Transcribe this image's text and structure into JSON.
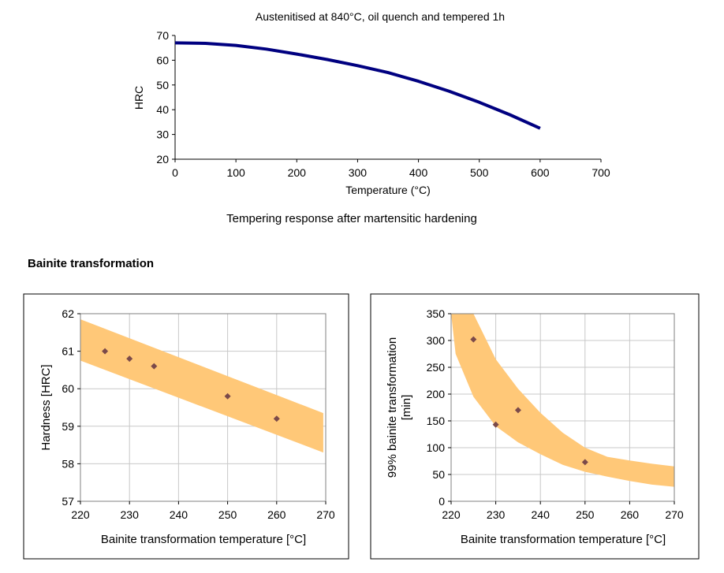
{
  "section_heading": "Bainite transformation",
  "caption_top": "Tempering response after martensitic hardening",
  "chart_data": [
    {
      "type": "line",
      "title": "Austenitised at 840°C, oil quench and tempered 1h",
      "xlabel": "Temperature (°C)",
      "ylabel": "HRC",
      "xlim": [
        0,
        700
      ],
      "ylim": [
        20,
        70
      ],
      "xticks": [
        "0",
        "100",
        "200",
        "300",
        "400",
        "500",
        "600",
        "700"
      ],
      "yticks": [
        "20",
        "30",
        "40",
        "50",
        "60",
        "70"
      ],
      "grid": false,
      "series": [
        {
          "color": "#000080",
          "x": [
            0,
            50,
            100,
            150,
            200,
            250,
            300,
            350,
            400,
            450,
            500,
            550,
            600
          ],
          "y": [
            67,
            66.8,
            66,
            64.5,
            62.5,
            60.3,
            57.8,
            55,
            51.5,
            47.5,
            43,
            38,
            32.5
          ]
        }
      ]
    },
    {
      "type": "scatter",
      "title": "",
      "xlabel": "Bainite transformation temperature [°C]",
      "ylabel": "Hardness [HRC]",
      "xlim": [
        220,
        270
      ],
      "ylim": [
        57,
        62
      ],
      "xticks": [
        "220",
        "230",
        "240",
        "250",
        "260",
        "270"
      ],
      "yticks": [
        "57",
        "58",
        "59",
        "60",
        "61",
        "62"
      ],
      "grid": true,
      "band_color": "#ffc878",
      "band": {
        "x": [
          220,
          269.5
        ],
        "upper": [
          61.85,
          59.35
        ],
        "lower": [
          60.75,
          58.3
        ]
      },
      "series": [
        {
          "color": "#7b4a4a",
          "x": [
            225,
            230,
            235,
            250,
            260
          ],
          "y": [
            61.0,
            60.8,
            60.6,
            59.8,
            59.2
          ]
        }
      ]
    },
    {
      "type": "scatter",
      "title": "",
      "xlabel": "Bainite transformation temperature [°C]",
      "ylabel_lines": [
        "99% bainite transformation",
        "[min]"
      ],
      "xlim": [
        220,
        270
      ],
      "ylim": [
        0,
        350
      ],
      "xticks": [
        "220",
        "230",
        "240",
        "250",
        "260",
        "270"
      ],
      "yticks": [
        "0",
        "50",
        "100",
        "150",
        "200",
        "250",
        "300",
        "350"
      ],
      "grid": true,
      "band_color": "#ffc878",
      "band": {
        "x": [
          220,
          221,
          223,
          225,
          230,
          235,
          240,
          245,
          250,
          255,
          260,
          265,
          270
        ],
        "upper": [
          350,
          350,
          350,
          350,
          265,
          210,
          165,
          128,
          100,
          83,
          76,
          70,
          65
        ],
        "lower": [
          350,
          275,
          235,
          195,
          140,
          110,
          88,
          68,
          55,
          46,
          38,
          31,
          27
        ]
      },
      "series": [
        {
          "color": "#7b4a4a",
          "x": [
            225,
            230,
            235,
            250
          ],
          "y": [
            302,
            143,
            170,
            73
          ]
        }
      ]
    }
  ]
}
